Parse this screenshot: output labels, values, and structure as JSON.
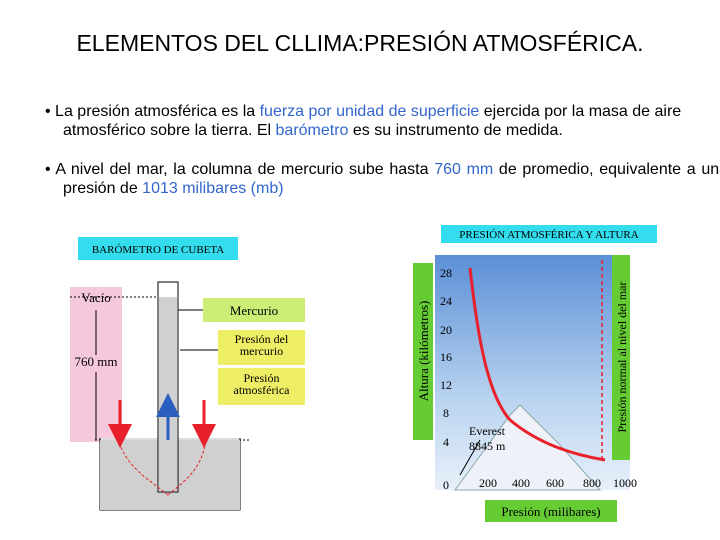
{
  "title": "ELEMENTOS DEL CLLIMA:PRESIÓN ATMOSFÉRICA.",
  "bullets": [
    [
      {
        "text": "La presión atmosférica es la ",
        "color": "#000000"
      },
      {
        "text": "fuerza por unidad de superficie",
        "color": "#3366cc"
      },
      {
        "text": " ejercida por la masa de aire atmosférico sobre la tierra. El ",
        "color": "#000000"
      },
      {
        "text": "barómetro",
        "color": "#3366cc"
      },
      {
        "text": " es su instrumento de medida.",
        "color": "#000000"
      }
    ],
    [
      {
        "text": "A nivel del mar, la columna de mercurio sube hasta ",
        "color": "#000000"
      },
      {
        "text": "760 mm",
        "color": "#3366cc"
      },
      {
        "text": " de promedio, equivalente a una presión de ",
        "color": "#000000"
      },
      {
        "text": "1013 milibares (mb)",
        "color": "#3366cc"
      }
    ]
  ],
  "barometer": {
    "title": "BARÓMETRO DE CUBETA",
    "vacuum": "Vacío",
    "height": "760 mm",
    "mercury": "Mercurio",
    "mercury_pressure": "Presión del mercurio",
    "atmospheric_pressure": "Presión atmosférica"
  },
  "altitude_chart": {
    "title": "PRESIÓN ATMOSFÉRICA Y ALTURA",
    "y_label": "Altura (kilómetros)",
    "y_ticks": [
      "28",
      "24",
      "20",
      "16",
      "12",
      "8",
      "4",
      "0"
    ],
    "x_ticks": [
      "200",
      "400",
      "600",
      "800",
      "1000"
    ],
    "x_label": "Presión (milibares)",
    "sea_level_label": "Presión normal al nivel del mar",
    "everest": [
      "Everest",
      "8845 m"
    ]
  }
}
